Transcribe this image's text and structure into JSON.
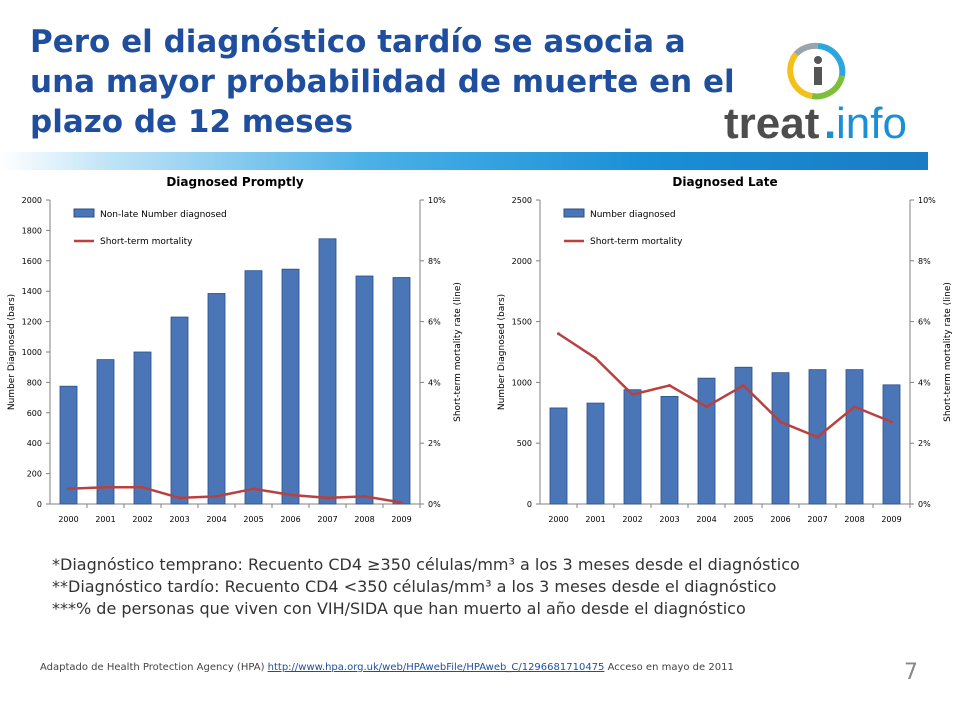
{
  "title": "Pero el diagnóstico tardío se asocia a una mayor probabilidad de muerte en el plazo de 12 meses",
  "logo": {
    "text_main": "treat",
    "text_dot": ".",
    "text_info": "info",
    "icon_letter": "i"
  },
  "colors": {
    "title": "#1f4e9e",
    "bar": "#4a76b8",
    "bar_edge": "#2c4f86",
    "line": "#b8413f",
    "logo_blue": "#1a8fd6",
    "logo_gray": "#4d4d4d"
  },
  "chart_data": [
    {
      "type": "bar",
      "title": "Diagnosed Promptly",
      "categories": [
        "2000",
        "2001",
        "2002",
        "2003",
        "2004",
        "2005",
        "2006",
        "2007",
        "2008",
        "2009"
      ],
      "series": [
        {
          "name": "Non-late Number diagnosed",
          "kind": "bar",
          "axis": "left",
          "values": [
            775,
            950,
            1000,
            1230,
            1385,
            1535,
            1545,
            1745,
            1500,
            1490
          ]
        },
        {
          "name": "Short-term mortality",
          "kind": "line",
          "axis": "right",
          "values": [
            0.5,
            0.55,
            0.55,
            0.2,
            0.25,
            0.5,
            0.3,
            0.2,
            0.25,
            0.05
          ]
        }
      ],
      "ylabel": "Number Diagnosed (bars)",
      "y2label": "Short-term mortality rate (line)",
      "ylim": [
        0,
        2000
      ],
      "yticks": [
        "0",
        "200",
        "400",
        "600",
        "800",
        "1000",
        "1200",
        "1400",
        "1600",
        "1800",
        "2000"
      ],
      "y2lim": [
        0,
        10
      ],
      "y2ticks": [
        "0%",
        "2%",
        "4%",
        "6%",
        "8%",
        "10%"
      ],
      "legend": "top-left"
    },
    {
      "type": "bar",
      "title": "Diagnosed Late",
      "categories": [
        "2000",
        "2001",
        "2002",
        "2003",
        "2004",
        "2005",
        "2006",
        "2007",
        "2008",
        "2009"
      ],
      "series": [
        {
          "name": "Number diagnosed",
          "kind": "bar",
          "axis": "left",
          "values": [
            790,
            830,
            940,
            885,
            1035,
            1125,
            1080,
            1105,
            1105,
            980
          ]
        },
        {
          "name": "Short-term mortality",
          "kind": "line",
          "axis": "right",
          "values": [
            5.6,
            4.8,
            3.6,
            3.9,
            3.2,
            3.9,
            2.7,
            2.2,
            3.2,
            2.7
          ]
        }
      ],
      "ylabel": "Number Diagnosed (bars)",
      "y2label": "Short-term mortality rate (line)",
      "ylim": [
        0,
        2500
      ],
      "yticks": [
        "0",
        "500",
        "1000",
        "1500",
        "2000",
        "2500"
      ],
      "y2lim": [
        0,
        10
      ],
      "y2ticks": [
        "0%",
        "2%",
        "4%",
        "6%",
        "8%",
        "10%"
      ],
      "legend": "top-left"
    }
  ],
  "notes": [
    "*Diagnóstico temprano: Recuento CD4 ≥350 células/mm³ a los 3 meses desde el diagnóstico",
    "**Diagnóstico tardío: Recuento CD4 <350 células/mm³ a los 3 meses desde el diagnóstico",
    "***% de personas que viven con VIH/SIDA que han muerto al año desde el diagnóstico"
  ],
  "source": {
    "prefix": "Adaptado de Health Protection Agency (HPA) ",
    "link_text": "http://www.hpa.org.uk/web/HPAwebFile/HPAweb_C/1296681710475",
    "suffix": " Acceso en mayo de 2011"
  },
  "page_number": "7"
}
